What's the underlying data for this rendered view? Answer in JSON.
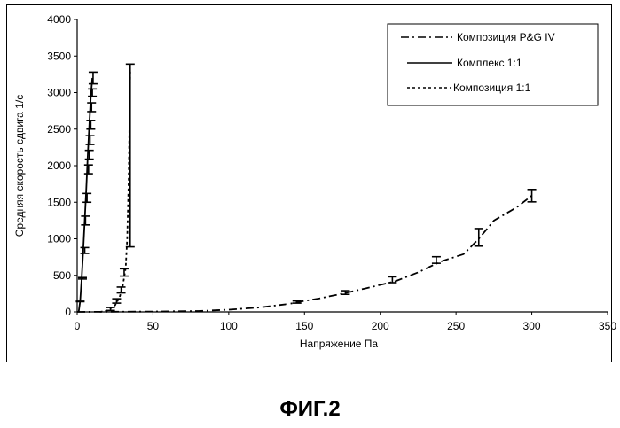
{
  "figure": {
    "caption": "ФИГ.2"
  },
  "chart_data": {
    "type": "line",
    "title": "",
    "xlabel": "Напряжение Па",
    "ylabel": "Средняя скорость сдвига 1/с",
    "xlim": [
      0,
      350
    ],
    "ylim": [
      0,
      4000
    ],
    "xticks": [
      0,
      50,
      100,
      150,
      200,
      250,
      300,
      350
    ],
    "yticks": [
      0,
      500,
      1000,
      1500,
      2000,
      2500,
      3000,
      3500,
      4000
    ],
    "grid": false,
    "legend_position": "top-right",
    "series": [
      {
        "name": "Композиция P&G IV",
        "style": "dash-dot",
        "color": "#000000",
        "points": [
          [
            0,
            0
          ],
          [
            50,
            5
          ],
          [
            80,
            12
          ],
          [
            100,
            30
          ],
          [
            120,
            60
          ],
          [
            140,
            110
          ],
          [
            150,
            150
          ],
          [
            160,
            185
          ],
          [
            175,
            250
          ],
          [
            190,
            320
          ],
          [
            210,
            420
          ],
          [
            225,
            540
          ],
          [
            240,
            690
          ],
          [
            255,
            790
          ],
          [
            265,
            1000
          ],
          [
            275,
            1250
          ],
          [
            290,
            1430
          ],
          [
            300,
            1590
          ]
        ],
        "error_bars": [
          [
            145,
            135,
            15
          ],
          [
            177,
            265,
            25
          ],
          [
            208,
            440,
            40
          ],
          [
            237,
            710,
            45
          ],
          [
            265,
            1020,
            120
          ],
          [
            300,
            1590,
            85
          ]
        ]
      },
      {
        "name": "Комплекс 1:1",
        "style": "solid",
        "color": "#000000",
        "points": [
          [
            1,
            0
          ],
          [
            2,
            150
          ],
          [
            3,
            460
          ],
          [
            4,
            840
          ],
          [
            5,
            1250
          ],
          [
            6,
            1690
          ],
          [
            7,
            2150
          ],
          [
            8,
            2550
          ],
          [
            9,
            2950
          ],
          [
            10,
            3200
          ]
        ],
        "error_bars": [
          [
            2,
            150,
            10
          ],
          [
            3.5,
            460,
            10
          ],
          [
            5,
            840,
            40
          ],
          [
            5.5,
            1250,
            60
          ],
          [
            6.5,
            1560,
            60
          ],
          [
            7.5,
            1950,
            60
          ],
          [
            8,
            2150,
            60
          ],
          [
            8.5,
            2350,
            60
          ],
          [
            9,
            2560,
            60
          ],
          [
            9.5,
            2800,
            60
          ],
          [
            10,
            3000,
            50
          ],
          [
            10.5,
            3200,
            80
          ]
        ]
      },
      {
        "name": "Композиция 1:1",
        "style": "dotted",
        "color": "#000000",
        "points": [
          [
            15,
            0
          ],
          [
            20,
            20
          ],
          [
            25,
            90
          ],
          [
            28,
            200
          ],
          [
            30,
            350
          ],
          [
            32,
            600
          ],
          [
            33,
            1000
          ],
          [
            34,
            1800
          ],
          [
            35,
            3300
          ]
        ],
        "error_bars": [
          [
            22,
            40,
            20
          ],
          [
            26,
            150,
            30
          ],
          [
            29,
            300,
            40
          ],
          [
            31,
            540,
            50
          ],
          [
            35,
            2140,
            1250
          ]
        ]
      }
    ]
  }
}
